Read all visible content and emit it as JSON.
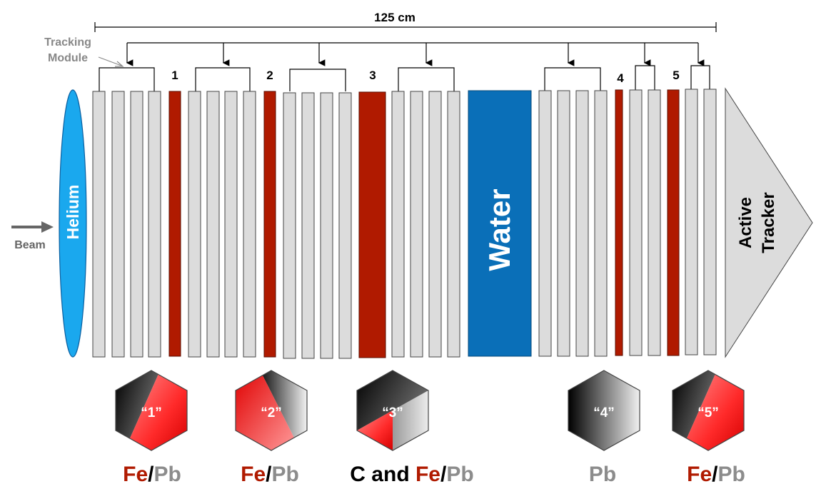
{
  "dimension_label": "125 cm",
  "tracking_module_label": [
    "Tracking",
    "Module"
  ],
  "beam_label": "Beam",
  "helium_label": "Helium",
  "water_label": "Water",
  "active_tracker_label": [
    "Active",
    "Tracker"
  ],
  "target_numbers": [
    "1",
    "2",
    "3",
    "4",
    "5"
  ],
  "hex_labels": [
    "“1”",
    "“2”",
    "“3”",
    "“4”",
    "“5”"
  ],
  "materials": {
    "fe": "Fe",
    "pb": "Pb",
    "c": "C",
    "and": " and ",
    "slash": "/"
  },
  "colors": {
    "iron": "#b01a00",
    "lead": "#8c8c8c",
    "carbon": "#000000",
    "scintillator": "#dcdcdc",
    "water": "#0a6fb8",
    "helium": "#1aa8ee",
    "tracker": "#dcdcdc"
  }
}
